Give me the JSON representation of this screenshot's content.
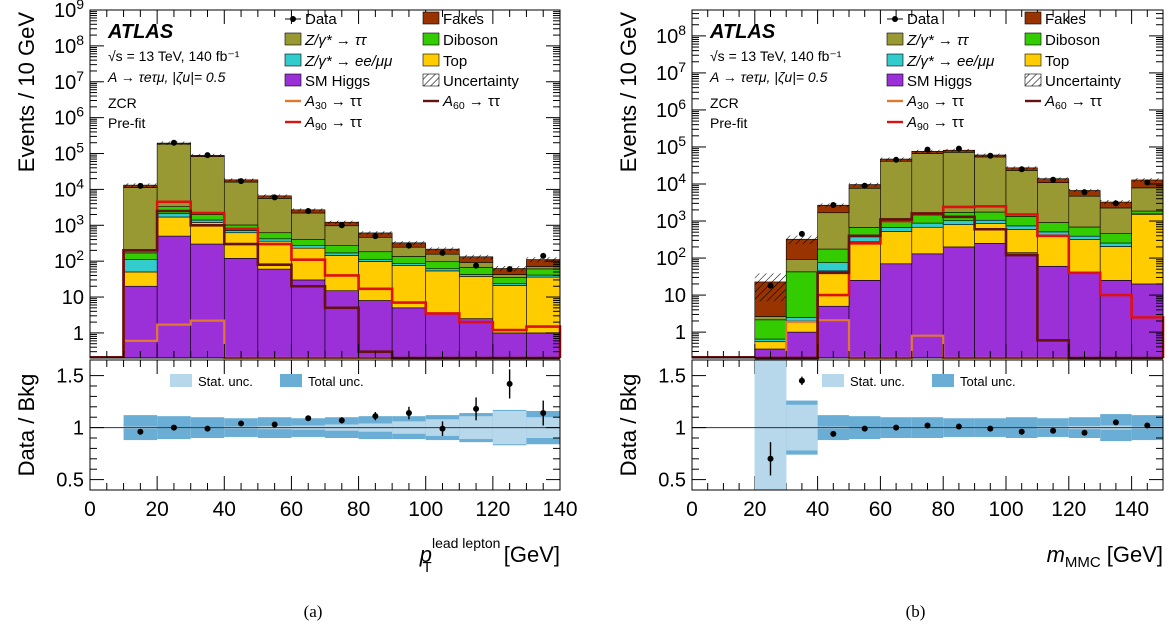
{
  "chart_data": [
    {
      "type": "stacked-histogram-with-ratio",
      "panel_label": "(a)",
      "xlabel": "p",
      "xlabel_sup": "lead lepton",
      "xlabel_sub": "T",
      "xunit": "[GeV]",
      "ylabel": "Events / 10 GeV",
      "ratio_ylabel": "Data / Bkg",
      "log_y": true,
      "xlim": [
        0,
        140
      ],
      "ylim": [
        0.2,
        1000000000
      ],
      "ratio_ylim": [
        0.4,
        1.65
      ],
      "x_ticks": [
        "0",
        "20",
        "40",
        "60",
        "80",
        "100",
        "120",
        "140"
      ],
      "y_ticks": [
        {
          "v": 1000000000,
          "m": "10",
          "e": "9"
        },
        {
          "v": 100000000,
          "m": "10",
          "e": "8"
        },
        {
          "v": 10000000,
          "m": "10",
          "e": "7"
        },
        {
          "v": 1000000,
          "m": "10",
          "e": "6"
        },
        {
          "v": 100000,
          "m": "10",
          "e": "5"
        },
        {
          "v": 10000,
          "m": "10",
          "e": "4"
        },
        {
          "v": 1000,
          "m": "10",
          "e": "3"
        },
        {
          "v": 100,
          "m": "10",
          "e": "2"
        },
        {
          "v": 10,
          "m": "10",
          "e": ""
        },
        {
          "v": 1,
          "m": "1",
          "e": ""
        }
      ],
      "ratio_ticks": [
        "0.5",
        "1",
        "1.5"
      ],
      "annotations": {
        "experiment": "ATLAS",
        "energy_line": "√s = 13 TeV, 140 fb⁻¹",
        "process_line": "A → τeτμ, |ζu|= 0.5",
        "region": "ZCR",
        "stage": "Pre-fit"
      },
      "bin_edges": [
        10,
        20,
        30,
        40,
        50,
        60,
        70,
        80,
        90,
        100,
        110,
        120,
        130,
        140
      ],
      "stack": [
        {
          "name": "SM Higgs",
          "color": "#9b30d9",
          "values": [
            20,
            500,
            300,
            120,
            60,
            30,
            15,
            8,
            5,
            3.5,
            2.5,
            1,
            1
          ]
        },
        {
          "name": "Top",
          "color": "#ffcc00",
          "values": [
            30,
            1200,
            900,
            500,
            300,
            200,
            130,
            90,
            70,
            50,
            35,
            20,
            35
          ]
        },
        {
          "name": "Z/γ* → ee/μμ",
          "color": "#33cccc",
          "values": [
            60,
            400,
            200,
            100,
            60,
            40,
            25,
            15,
            10,
            8,
            5,
            2.5,
            5
          ]
        },
        {
          "name": "Diboson",
          "color": "#33cc00",
          "values": [
            60,
            1200,
            600,
            300,
            200,
            130,
            100,
            70,
            50,
            35,
            25,
            12,
            20
          ]
        },
        {
          "name": "Z/γ* → ττ",
          "color": "#999933",
          "values": [
            11000,
            180000,
            80000,
            15000,
            5000,
            1800,
            700,
            280,
            110,
            60,
            25,
            7,
            10
          ]
        },
        {
          "name": "Fakes",
          "color": "#993300",
          "values": [
            2000,
            12000,
            7000,
            2500,
            1000,
            500,
            250,
            150,
            80,
            60,
            40,
            20,
            40
          ]
        }
      ],
      "signals": [
        {
          "name": "A30 → ττ",
          "label": "A",
          "label_sub": "30",
          "label_rest": " → ττ",
          "color": "#e07830",
          "values": [
            0.6,
            1.7,
            2.2,
            0.05,
            0.05,
            0.05,
            0.05,
            0.05,
            0.05,
            0.05,
            0.05,
            0.05,
            0.05
          ]
        },
        {
          "name": "A90 → ττ",
          "label": "A",
          "label_sub": "90",
          "label_rest": " → ττ",
          "color": "#dd1111",
          "values": [
            200,
            4500,
            2200,
            800,
            300,
            110,
            40,
            17,
            7,
            3.5,
            2,
            1.2,
            1.5
          ]
        },
        {
          "name": "A60 → ττ",
          "label": "A",
          "label_sub": "60",
          "label_rest": " → ττ",
          "color": "#661111",
          "values": [
            200,
            2500,
            1000,
            300,
            80,
            20,
            5,
            0.3,
            0.05,
            0.05,
            0.05,
            0.05,
            0.05
          ]
        }
      ],
      "data": {
        "name": "Data",
        "x": [
          15,
          25,
          35,
          45,
          55,
          65,
          75,
          85,
          95,
          105,
          115,
          125,
          135
        ],
        "y": [
          12500,
          200000,
          90000,
          17000,
          6000,
          2500,
          1000,
          500,
          270,
          170,
          75,
          60,
          140
        ],
        "ratio": [
          0.96,
          1.0,
          0.99,
          1.04,
          1.03,
          1.09,
          1.07,
          1.11,
          1.14,
          0.99,
          1.18,
          1.42,
          1.14
        ],
        "ratio_err": [
          0.02,
          0.0,
          0.0,
          0.01,
          0.01,
          0.02,
          0.03,
          0.04,
          0.06,
          0.07,
          0.11,
          0.14,
          0.12
        ]
      },
      "ratio_bands": {
        "stat_unc_label": "Stat. unc.",
        "total_unc_label": "Total unc.",
        "stat_color": "#b7d7ea",
        "total_color": "#6aaed6",
        "stat_half": [
          0.01,
          0.005,
          0.005,
          0.01,
          0.015,
          0.02,
          0.03,
          0.04,
          0.06,
          0.08,
          0.11,
          0.16,
          0.1
        ],
        "total_half": [
          0.12,
          0.11,
          0.1,
          0.09,
          0.1,
          0.09,
          0.1,
          0.11,
          0.11,
          0.12,
          0.14,
          0.17,
          0.16
        ]
      },
      "uncertainty_label": "Uncertainty"
    },
    {
      "type": "stacked-histogram-with-ratio",
      "panel_label": "(b)",
      "xlabel": "m",
      "xlabel_sub": "MMC",
      "xunit": "[GeV]",
      "ylabel": "Events / 10 GeV",
      "ratio_ylabel": "Data / Bkg",
      "log_y": true,
      "xlim": [
        0,
        150
      ],
      "ylim": [
        0.2,
        500000000
      ],
      "ratio_ylim": [
        0.4,
        1.65
      ],
      "x_ticks": [
        "0",
        "20",
        "40",
        "60",
        "80",
        "100",
        "120",
        "140"
      ],
      "y_ticks": [
        {
          "v": 100000000,
          "m": "10",
          "e": "8"
        },
        {
          "v": 10000000,
          "m": "10",
          "e": "7"
        },
        {
          "v": 1000000,
          "m": "10",
          "e": "6"
        },
        {
          "v": 100000,
          "m": "10",
          "e": "5"
        },
        {
          "v": 10000,
          "m": "10",
          "e": "4"
        },
        {
          "v": 1000,
          "m": "10",
          "e": "3"
        },
        {
          "v": 100,
          "m": "10",
          "e": "2"
        },
        {
          "v": 10,
          "m": "10",
          "e": ""
        },
        {
          "v": 1,
          "m": "1",
          "e": ""
        }
      ],
      "ratio_ticks": [
        "0.5",
        "1",
        "1.5"
      ],
      "annotations": {
        "experiment": "ATLAS",
        "energy_line": "√s = 13 TeV, 140 fb⁻¹",
        "process_line": "A → τeτμ, |ζu|= 0.5",
        "region": "ZCR",
        "stage": "Pre-fit"
      },
      "bin_edges": [
        20,
        30,
        40,
        50,
        60,
        70,
        80,
        90,
        100,
        110,
        120,
        130,
        140,
        150
      ],
      "stack": [
        {
          "name": "SM Higgs",
          "color": "#9b30d9",
          "values": [
            0.35,
            1,
            5,
            25,
            70,
            130,
            200,
            250,
            140,
            60,
            40,
            25,
            20
          ]
        },
        {
          "name": "Top",
          "color": "#ffcc00",
          "values": [
            0.2,
            1,
            40,
            250,
            450,
            550,
            600,
            600,
            450,
            350,
            280,
            180,
            1500
          ]
        },
        {
          "name": "Z/γ* → ee/μμ",
          "color": "#33cccc",
          "values": [
            0.1,
            0.5,
            30,
            100,
            150,
            200,
            220,
            200,
            150,
            100,
            70,
            50,
            40
          ]
        },
        {
          "name": "Diboson",
          "color": "#33cc00",
          "values": [
            1.5,
            40,
            100,
            300,
            500,
            600,
            700,
            700,
            600,
            400,
            300,
            200,
            300
          ]
        },
        {
          "name": "Z/γ* → ττ",
          "color": "#999933",
          "values": [
            0.5,
            50,
            1500,
            7000,
            40000,
            65000,
            70000,
            52000,
            22000,
            10000,
            4000,
            1800,
            6000
          ]
        },
        {
          "name": "Fakes",
          "color": "#993300",
          "values": [
            20,
            230,
            1000,
            2000,
            6000,
            10000,
            10000,
            7000,
            4000,
            3000,
            2000,
            1000,
            5000
          ]
        }
      ],
      "signals": [
        {
          "name": "A30 → ττ",
          "label": "A",
          "label_sub": "30",
          "label_rest": " → ττ",
          "color": "#e07830",
          "values": [
            0.05,
            1.9,
            2.1,
            0.05,
            0.05,
            0.8,
            0.05,
            0.05,
            0.05,
            0.05,
            0.05,
            0.05,
            0.05
          ]
        },
        {
          "name": "A90 → ττ",
          "label": "A",
          "label_sub": "90",
          "label_rest": " → ττ",
          "color": "#dd1111",
          "values": [
            0.05,
            0.05,
            10,
            250,
            1000,
            1500,
            2400,
            2500,
            1500,
            400,
            40,
            10,
            2.5
          ]
        },
        {
          "name": "A60 → ττ",
          "label": "A",
          "label_sub": "60",
          "label_rest": " → ττ",
          "color": "#661111",
          "values": [
            0.05,
            0.05,
            40,
            400,
            1100,
            1600,
            1300,
            600,
            120,
            0.6,
            0.05,
            0.05,
            0.05
          ]
        }
      ],
      "data": {
        "name": "Data",
        "x": [
          25,
          35,
          45,
          55,
          65,
          75,
          85,
          95,
          105,
          115,
          125,
          135,
          145
        ],
        "y": [
          18,
          450,
          2700,
          9000,
          45000,
          85000,
          90000,
          58000,
          25000,
          13000,
          6000,
          3000,
          11000
        ],
        "ratio": [
          0.7,
          1.45,
          0.94,
          0.99,
          1.0,
          1.02,
          1.01,
          0.99,
          0.96,
          0.97,
          0.95,
          1.05,
          1.02
        ],
        "ratio_err": [
          0.16,
          0.04,
          0.01,
          0.0,
          0.0,
          0.0,
          0.0,
          0.0,
          0.0,
          0.0,
          0.0,
          0.0,
          0.0
        ]
      },
      "ratio_bands": {
        "stat_unc_label": "Stat. unc.",
        "total_unc_label": "Total unc.",
        "stat_color": "#b7d7ea",
        "total_color": "#6aaed6",
        "stat_half": [
          0.7,
          0.22,
          0.01,
          0.005,
          0.005,
          0.005,
          0.005,
          0.005,
          0.005,
          0.01,
          0.015,
          0.02,
          0.01
        ],
        "total_half": [
          0.7,
          0.26,
          0.12,
          0.11,
          0.1,
          0.1,
          0.09,
          0.09,
          0.1,
          0.09,
          0.1,
          0.13,
          0.12
        ]
      },
      "uncertainty_label": "Uncertainty"
    }
  ],
  "legend_order": [
    "Data",
    "Fakes",
    "Z/γ* → ττ",
    "Diboson",
    "Z/γ* → ee/μμ",
    "Top",
    "SM Higgs",
    "Uncertainty",
    "A30 → ττ",
    "A60 → ττ",
    "A90 → ττ"
  ]
}
